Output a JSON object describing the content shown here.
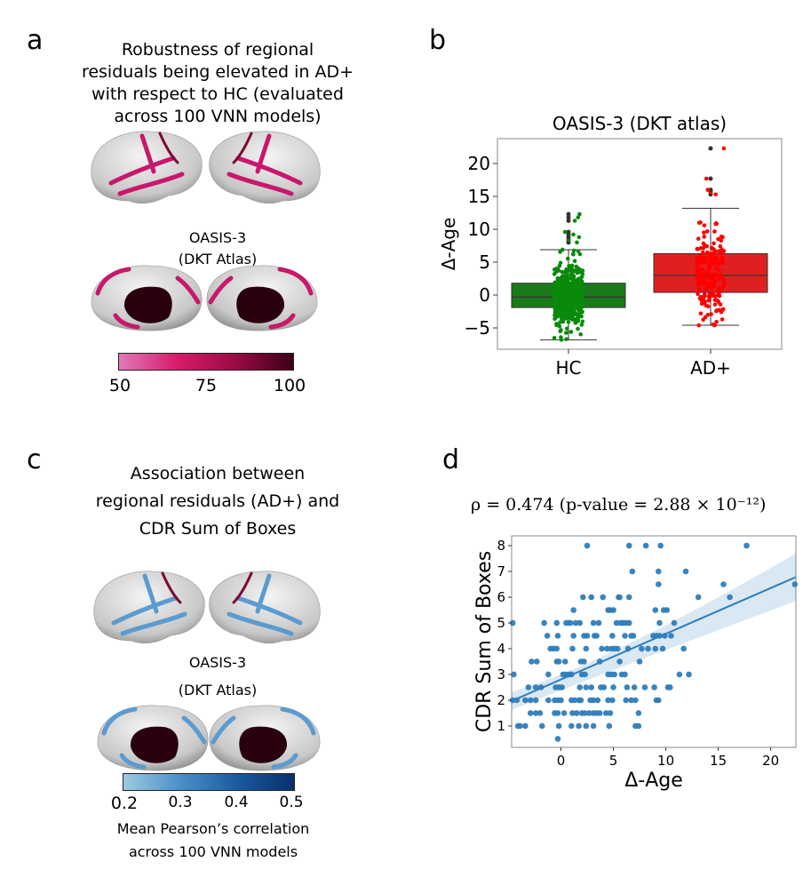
{
  "panels": {
    "a": {
      "label": "a",
      "title_lines": [
        "Robustness of regional",
        "residuals being elevated in AD+",
        "with respect to HC (evaluated",
        "across 100 VNN models)"
      ],
      "dataset_lines": [
        "OASIS-3",
        "(DKT Atlas)"
      ],
      "colorbar": {
        "ticks": [
          "50",
          "75",
          "100"
        ],
        "colors": [
          "#e07ab8",
          "#d81b6a",
          "#9c0a45",
          "#3a0018"
        ]
      },
      "highlight_color": "#c8186b"
    },
    "b": {
      "label": "b"
    },
    "c": {
      "label": "c",
      "title_lines": [
        "Association between",
        "regional residuals (AD+) and",
        "CDR Sum of Boxes"
      ],
      "dataset_lines": [
        "OASIS-3",
        "(DKT Atlas)"
      ],
      "colorbar": {
        "ticks": [
          "0.2",
          "0.3",
          "0.4",
          "0.5"
        ],
        "colors": [
          "#9ecae1",
          "#4a90c8",
          "#1a5aa0",
          "#08306b"
        ]
      },
      "caption_lines": [
        "Mean Pearson’s correlation",
        "across 100 VNN models"
      ],
      "highlight_color": "#5b9bd0"
    },
    "d": {
      "label": "d",
      "annotation": "ρ = 0.474 (p-value = 2.88 × 10⁻¹²)"
    }
  },
  "chart_data": [
    {
      "type": "box",
      "title": "OASIS-3 (DKT atlas)",
      "xlabel": "",
      "ylabel": "Δ-Age",
      "categories": [
        "HC",
        "AD+"
      ],
      "ylim": [
        -7.5,
        23
      ],
      "yticks": [
        "−5",
        "0",
        "5",
        "10",
        "15",
        "20"
      ],
      "ytick_values": [
        -5,
        0,
        5,
        10,
        15,
        20
      ],
      "series": [
        {
          "name": "HC",
          "color": "#1a7a1a",
          "point_color": "#0a8a0a",
          "whisker_low": -6.8,
          "q1": -1.9,
          "median": -0.3,
          "q3": 1.8,
          "whisker_high": 6.9,
          "outliers": [
            8.0,
            8.4,
            8.8,
            9.2,
            9.6,
            11.3,
            11.8,
            12.3
          ]
        },
        {
          "name": "AD+",
          "color": "#e02020",
          "point_color": "#ff0000",
          "whisker_low": -4.6,
          "q1": 0.4,
          "median": 3.0,
          "q3": 6.3,
          "whisker_high": 13.2,
          "outliers": [
            15.3,
            15.7,
            16.0,
            17.7,
            22.3
          ]
        }
      ]
    },
    {
      "type": "scatter",
      "title": "",
      "xlabel": "Δ-Age",
      "ylabel": "CDR Sum of Boxes",
      "xlim": [
        -4.7,
        22.4
      ],
      "ylim": [
        0.17,
        8.38
      ],
      "xticks": [
        0,
        5,
        10,
        15,
        20
      ],
      "yticks": [
        1,
        2,
        3,
        4,
        5,
        6,
        7,
        8
      ],
      "color": "#2f7dbb",
      "regression": {
        "x": [
          -4.7,
          22.4
        ],
        "y": [
          1.97,
          6.78
        ],
        "ci_low_at_ends": [
          1.62,
          5.85
        ],
        "ci_high_at_ends": [
          2.32,
          7.7
        ]
      },
      "points": [
        [
          2.5,
          8
        ],
        [
          6.5,
          8
        ],
        [
          8.1,
          8
        ],
        [
          9.5,
          8
        ],
        [
          17.7,
          8
        ],
        [
          6.8,
          7
        ],
        [
          9.3,
          7
        ],
        [
          11.9,
          7
        ],
        [
          9.3,
          6.5
        ],
        [
          15.5,
          6.5
        ],
        [
          22.3,
          6.5
        ],
        [
          2.1,
          6
        ],
        [
          2.9,
          6
        ],
        [
          4,
          6
        ],
        [
          5.5,
          6
        ],
        [
          5.6,
          6
        ],
        [
          6.5,
          6
        ],
        [
          13.1,
          6
        ],
        [
          16.1,
          6
        ],
        [
          1.2,
          5.5
        ],
        [
          4.5,
          5.5
        ],
        [
          4.7,
          5.5
        ],
        [
          5,
          5.5
        ],
        [
          9,
          5.5
        ],
        [
          9.8,
          5.5
        ],
        [
          10.1,
          5.5
        ],
        [
          -4.6,
          5
        ],
        [
          -1.6,
          5
        ],
        [
          -0.4,
          5
        ],
        [
          0.5,
          5
        ],
        [
          0.7,
          5
        ],
        [
          0.9,
          5
        ],
        [
          1.4,
          5
        ],
        [
          1.8,
          5
        ],
        [
          3.1,
          5
        ],
        [
          3.6,
          5
        ],
        [
          5.3,
          5
        ],
        [
          5.7,
          5
        ],
        [
          5.9,
          5
        ],
        [
          6.2,
          5
        ],
        [
          6.5,
          5
        ],
        [
          9.4,
          5
        ],
        [
          10.8,
          5
        ],
        [
          -1.3,
          4.5
        ],
        [
          -0.3,
          4.5
        ],
        [
          1.2,
          4.5
        ],
        [
          2.2,
          4.5
        ],
        [
          2.5,
          4.5
        ],
        [
          3.2,
          4.5
        ],
        [
          3.4,
          4.5
        ],
        [
          4.9,
          4.5
        ],
        [
          6.1,
          4.5
        ],
        [
          6.7,
          4.5
        ],
        [
          6.9,
          4.5
        ],
        [
          8.8,
          4.5
        ],
        [
          9.1,
          4.5
        ],
        [
          9.4,
          4.5
        ],
        [
          9.9,
          4.5
        ],
        [
          10.5,
          4.5
        ],
        [
          -1,
          4
        ],
        [
          -0.7,
          4
        ],
        [
          -0.4,
          4
        ],
        [
          1.1,
          4
        ],
        [
          2.4,
          4
        ],
        [
          3.9,
          4
        ],
        [
          4.4,
          4
        ],
        [
          4.8,
          4
        ],
        [
          5.1,
          4
        ],
        [
          5.4,
          4
        ],
        [
          6.4,
          4
        ],
        [
          7.7,
          4
        ],
        [
          8.3,
          4
        ],
        [
          9,
          4
        ],
        [
          9.7,
          4
        ],
        [
          11.7,
          4
        ],
        [
          -2.8,
          3.5
        ],
        [
          -2.3,
          3.5
        ],
        [
          -0.4,
          3.5
        ],
        [
          -0.2,
          3.5
        ],
        [
          0.4,
          3.5
        ],
        [
          1.9,
          3.5
        ],
        [
          2.2,
          3.5
        ],
        [
          3.7,
          3.5
        ],
        [
          5.6,
          3.5
        ],
        [
          7.5,
          3.5
        ],
        [
          -4.5,
          3
        ],
        [
          -1.2,
          3
        ],
        [
          0.2,
          3
        ],
        [
          0.5,
          3
        ],
        [
          0.8,
          3
        ],
        [
          1,
          3
        ],
        [
          2,
          3
        ],
        [
          2.3,
          3
        ],
        [
          4.5,
          3
        ],
        [
          4.8,
          3
        ],
        [
          5.1,
          3
        ],
        [
          5.8,
          3
        ],
        [
          6.1,
          3
        ],
        [
          11.3,
          3
        ],
        [
          12.2,
          3
        ],
        [
          -3.1,
          2.5
        ],
        [
          -2.4,
          2.5
        ],
        [
          -1.9,
          2.5
        ],
        [
          -0.5,
          2.5
        ],
        [
          -0.2,
          2.5
        ],
        [
          0.1,
          2.5
        ],
        [
          1.8,
          2.5
        ],
        [
          2.4,
          2.5
        ],
        [
          2.9,
          2.5
        ],
        [
          3.8,
          2.5
        ],
        [
          4.1,
          2.5
        ],
        [
          5,
          2.5
        ],
        [
          6.3,
          2.5
        ],
        [
          7,
          2.5
        ],
        [
          8,
          2.5
        ],
        [
          8.9,
          2.5
        ],
        [
          10.2,
          2.5
        ],
        [
          10.4,
          2.5
        ],
        [
          -4.6,
          2
        ],
        [
          -4.2,
          2
        ],
        [
          -3.4,
          2
        ],
        [
          -2.9,
          2
        ],
        [
          -2.4,
          2
        ],
        [
          -1.2,
          2
        ],
        [
          -0.6,
          2
        ],
        [
          -0.3,
          2
        ],
        [
          0,
          2
        ],
        [
          1,
          2
        ],
        [
          1.3,
          2
        ],
        [
          1.7,
          2
        ],
        [
          1.9,
          2
        ],
        [
          2.8,
          2
        ],
        [
          3.1,
          2
        ],
        [
          3.5,
          2
        ],
        [
          4.5,
          2
        ],
        [
          4.9,
          2
        ],
        [
          6.2,
          2
        ],
        [
          6.7,
          2
        ],
        [
          7.1,
          2
        ],
        [
          9.1,
          2
        ],
        [
          9.3,
          2
        ],
        [
          -2.9,
          1.5
        ],
        [
          -2.4,
          1.5
        ],
        [
          -2,
          1.5
        ],
        [
          -0.6,
          1.5
        ],
        [
          -0.3,
          1.5
        ],
        [
          0.3,
          1.5
        ],
        [
          1.1,
          1.5
        ],
        [
          1.5,
          1.5
        ],
        [
          2,
          1.5
        ],
        [
          2.3,
          1.5
        ],
        [
          2.7,
          1.5
        ],
        [
          3.1,
          1.5
        ],
        [
          3.4,
          1.5
        ],
        [
          3.7,
          1.5
        ],
        [
          4.3,
          1.5
        ],
        [
          4.7,
          1.5
        ],
        [
          7.4,
          1.5
        ],
        [
          -4.1,
          1
        ],
        [
          -3.9,
          1
        ],
        [
          -3.4,
          1
        ],
        [
          -1.8,
          1
        ],
        [
          -0.2,
          1
        ],
        [
          1,
          1
        ],
        [
          1.7,
          1
        ],
        [
          2.4,
          1
        ],
        [
          3.1,
          1
        ],
        [
          4.6,
          1
        ],
        [
          7.1,
          1
        ],
        [
          7.4,
          1
        ],
        [
          -0.3,
          0.5
        ]
      ]
    }
  ]
}
